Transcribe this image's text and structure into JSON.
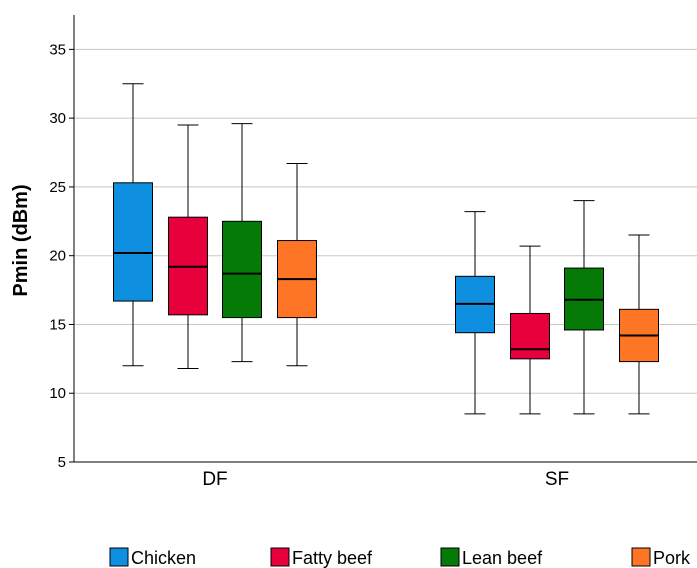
{
  "chart_data": {
    "type": "box",
    "ylabel": "Pmin (dBm)",
    "xlabel": "",
    "ylim": [
      5,
      37.5
    ],
    "yticks": [
      5,
      10,
      15,
      20,
      25,
      30,
      35
    ],
    "grid": "horizontal",
    "legend_position": "bottom",
    "categories": [
      "DF",
      "SF"
    ],
    "series": [
      {
        "name": "Chicken",
        "color": "#0f8fe0",
        "values": [
          {
            "category": "DF",
            "min": 12.0,
            "q1": 16.7,
            "median": 20.2,
            "q3": 25.3,
            "max": 32.5
          },
          {
            "category": "SF",
            "min": 8.5,
            "q1": 14.4,
            "median": 16.5,
            "q3": 18.5,
            "max": 23.2
          }
        ]
      },
      {
        "name": "Fatty beef",
        "color": "#e8003c",
        "values": [
          {
            "category": "DF",
            "min": 11.8,
            "q1": 15.7,
            "median": 19.2,
            "q3": 22.8,
            "max": 29.5
          },
          {
            "category": "SF",
            "min": 8.5,
            "q1": 12.5,
            "median": 13.2,
            "q3": 15.8,
            "max": 20.7
          }
        ]
      },
      {
        "name": "Lean beef",
        "color": "#067a06",
        "values": [
          {
            "category": "DF",
            "min": 12.3,
            "q1": 15.5,
            "median": 18.7,
            "q3": 22.5,
            "max": 29.6
          },
          {
            "category": "SF",
            "min": 8.5,
            "q1": 14.6,
            "median": 16.8,
            "q3": 19.1,
            "max": 24.0
          }
        ]
      },
      {
        "name": "Pork",
        "color": "#ff7526",
        "values": [
          {
            "category": "DF",
            "min": 12.0,
            "q1": 15.5,
            "median": 18.3,
            "q3": 21.1,
            "max": 26.7
          },
          {
            "category": "SF",
            "min": 8.5,
            "q1": 12.3,
            "median": 14.2,
            "q3": 16.1,
            "max": 21.5
          }
        ]
      }
    ]
  }
}
